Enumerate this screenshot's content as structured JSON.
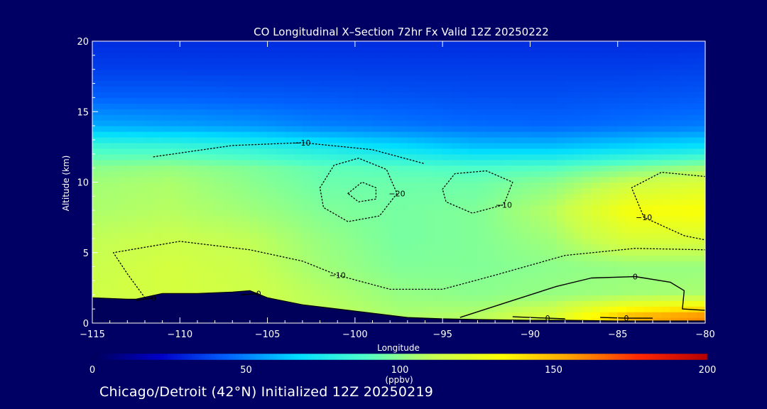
{
  "chart_data": {
    "type": "heatmap",
    "title": "CO Longitudinal X–Section 72hr  Fx Valid 12Z 20250222",
    "xlabel": "Longitude",
    "ylabel": "Altitude (km)",
    "xlim": [
      -115,
      -80
    ],
    "ylim": [
      0,
      20
    ],
    "x_ticks": [
      -115,
      -110,
      -105,
      -100,
      -95,
      -90,
      -85,
      -80
    ],
    "x_tick_labels": [
      "−115",
      "−110",
      "−105",
      "−100",
      "−95",
      "−90",
      "−85",
      "−80"
    ],
    "y_ticks": [
      0,
      5,
      10,
      15,
      20
    ],
    "y_tick_labels": [
      "0",
      "5",
      "10",
      "15",
      "20"
    ],
    "colorbar": {
      "ticks": [
        0,
        50,
        100,
        150,
        200
      ],
      "tick_labels": [
        "0",
        "50",
        "100",
        "150",
        "200"
      ],
      "units": "(ppbv)",
      "colors": [
        "#00005a",
        "#0000c8",
        "#0064ff",
        "#00dcff",
        "#50ffc8",
        "#c8ff50",
        "#ffff00",
        "#ffa000",
        "#ff2800",
        "#b40000"
      ]
    },
    "field_rows": [
      {
        "z": 20,
        "values": [
          32,
          32,
          32,
          32,
          32,
          32,
          32,
          32,
          32
        ]
      },
      {
        "z": 18,
        "values": [
          36,
          36,
          36,
          36,
          36,
          36,
          36,
          36,
          37
        ]
      },
      {
        "z": 16,
        "values": [
          44,
          44,
          43,
          42,
          41,
          40,
          40,
          41,
          42
        ]
      },
      {
        "z": 14,
        "values": [
          58,
          56,
          54,
          50,
          48,
          46,
          45,
          47,
          49
        ]
      },
      {
        "z": 12.5,
        "values": [
          85,
          84,
          80,
          74,
          68,
          62,
          62,
          66,
          70
        ]
      },
      {
        "z": 11,
        "values": [
          100,
          102,
          98,
          92,
          90,
          88,
          90,
          98,
          104
        ]
      },
      {
        "z": 10,
        "values": [
          104,
          106,
          100,
          94,
          94,
          94,
          100,
          112,
          118
        ]
      },
      {
        "z": 8,
        "values": [
          106,
          108,
          104,
          98,
          96,
          98,
          108,
          130,
          132
        ]
      },
      {
        "z": 6,
        "values": [
          110,
          112,
          110,
          102,
          96,
          98,
          104,
          118,
          118
        ]
      },
      {
        "z": 4,
        "values": [
          112,
          116,
          112,
          104,
          98,
          98,
          100,
          102,
          102
        ]
      },
      {
        "z": 2,
        "values": [
          114,
          116,
          114,
          108,
          102,
          100,
          102,
          104,
          106
        ]
      },
      {
        "z": 0.5,
        "values": [
          110,
          112,
          112,
          110,
          106,
          108,
          118,
          150,
          160
        ]
      }
    ],
    "field_lons": [
      -115,
      -110.6,
      -106.2,
      -101.9,
      -97.5,
      -93.1,
      -88.8,
      -84.4,
      -80
    ],
    "terrain": {
      "lon": [
        -115,
        -113,
        -112.5,
        -111,
        -109,
        -107,
        -106,
        -105,
        -103,
        -101,
        -99,
        -97,
        -95,
        -93,
        -90,
        -88,
        -85,
        -80
      ],
      "alt": [
        1.8,
        1.7,
        1.7,
        2.1,
        2.1,
        2.2,
        2.3,
        1.8,
        1.3,
        1.0,
        0.7,
        0.4,
        0.3,
        0.25,
        0.2,
        0.2,
        0.15,
        0.15
      ]
    },
    "contours": [
      {
        "label": "−10",
        "style": "dotted",
        "points": [
          [
            -111.5,
            11.8
          ],
          [
            -107,
            12.6
          ],
          [
            -103,
            12.8
          ],
          [
            -99,
            12.3
          ],
          [
            -96,
            11.3
          ]
        ]
      },
      {
        "label": "−20",
        "style": "dotted",
        "points": [
          [
            -102,
            9.6
          ],
          [
            -101.2,
            11.2
          ],
          [
            -99.8,
            11.7
          ],
          [
            -98.2,
            10.9
          ],
          [
            -97.6,
            9.2
          ],
          [
            -98.6,
            7.6
          ],
          [
            -100.4,
            7.2
          ],
          [
            -101.8,
            8.2
          ],
          [
            -102,
            9.6
          ]
        ]
      },
      {
        "label": "",
        "style": "dotted",
        "points": [
          [
            -100.4,
            9.2
          ],
          [
            -99.6,
            10.0
          ],
          [
            -98.8,
            9.6
          ],
          [
            -98.8,
            8.8
          ],
          [
            -99.8,
            8.6
          ],
          [
            -100.4,
            9.2
          ]
        ]
      },
      {
        "label": "−10",
        "style": "dotted",
        "points": [
          [
            -95,
            9.5
          ],
          [
            -94.3,
            10.6
          ],
          [
            -92.5,
            10.8
          ],
          [
            -91,
            10.0
          ],
          [
            -91.5,
            8.4
          ],
          [
            -93.3,
            7.8
          ],
          [
            -94.8,
            8.6
          ],
          [
            -95,
            9.5
          ]
        ]
      },
      {
        "label": "−10",
        "style": "dotted",
        "points": [
          [
            -112,
            1.8
          ],
          [
            -113,
            3.5
          ],
          [
            -113.8,
            5.0
          ],
          [
            -110,
            5.8
          ],
          [
            -106,
            5.2
          ],
          [
            -103,
            4.4
          ],
          [
            -101,
            3.4
          ],
          [
            -98,
            2.4
          ],
          [
            -95,
            2.4
          ],
          [
            -92,
            3.4
          ],
          [
            -88,
            4.8
          ],
          [
            -84,
            5.3
          ],
          [
            -80,
            5.2
          ]
        ]
      },
      {
        "label": "−10",
        "style": "dotted",
        "points": [
          [
            -80,
            10.4
          ],
          [
            -82.5,
            10.7
          ],
          [
            -84.2,
            9.6
          ],
          [
            -83.5,
            7.5
          ],
          [
            -81.2,
            6.2
          ],
          [
            -80,
            5.9
          ]
        ]
      },
      {
        "label": "0",
        "style": "solid",
        "points": [
          [
            -94,
            0.4
          ],
          [
            -91,
            1.6
          ],
          [
            -88.5,
            2.6
          ],
          [
            -86.5,
            3.2
          ],
          [
            -84,
            3.3
          ],
          [
            -82,
            2.9
          ],
          [
            -81.2,
            2.3
          ],
          [
            -81.3,
            1.0
          ],
          [
            -80,
            0.9
          ]
        ]
      },
      {
        "label": "0",
        "style": "solid",
        "points": [
          [
            -91,
            0.45
          ],
          [
            -89,
            0.35
          ],
          [
            -88,
            0.3
          ]
        ]
      },
      {
        "label": "0",
        "style": "solid",
        "points": [
          [
            -86,
            0.4
          ],
          [
            -84.5,
            0.35
          ],
          [
            -83,
            0.35
          ]
        ]
      },
      {
        "label": "0",
        "style": "solid",
        "points": [
          [
            -112.5,
            1.6
          ],
          [
            -111.5,
            1.8
          ]
        ]
      },
      {
        "label": "0",
        "style": "solid",
        "points": [
          [
            -106.5,
            2.0
          ],
          [
            -105.5,
            2.1
          ]
        ]
      }
    ],
    "grid": false,
    "legend": "none"
  },
  "footer": {
    "text": "Chicago/Detroit (42°N) Initialized 12Z 20250219"
  }
}
